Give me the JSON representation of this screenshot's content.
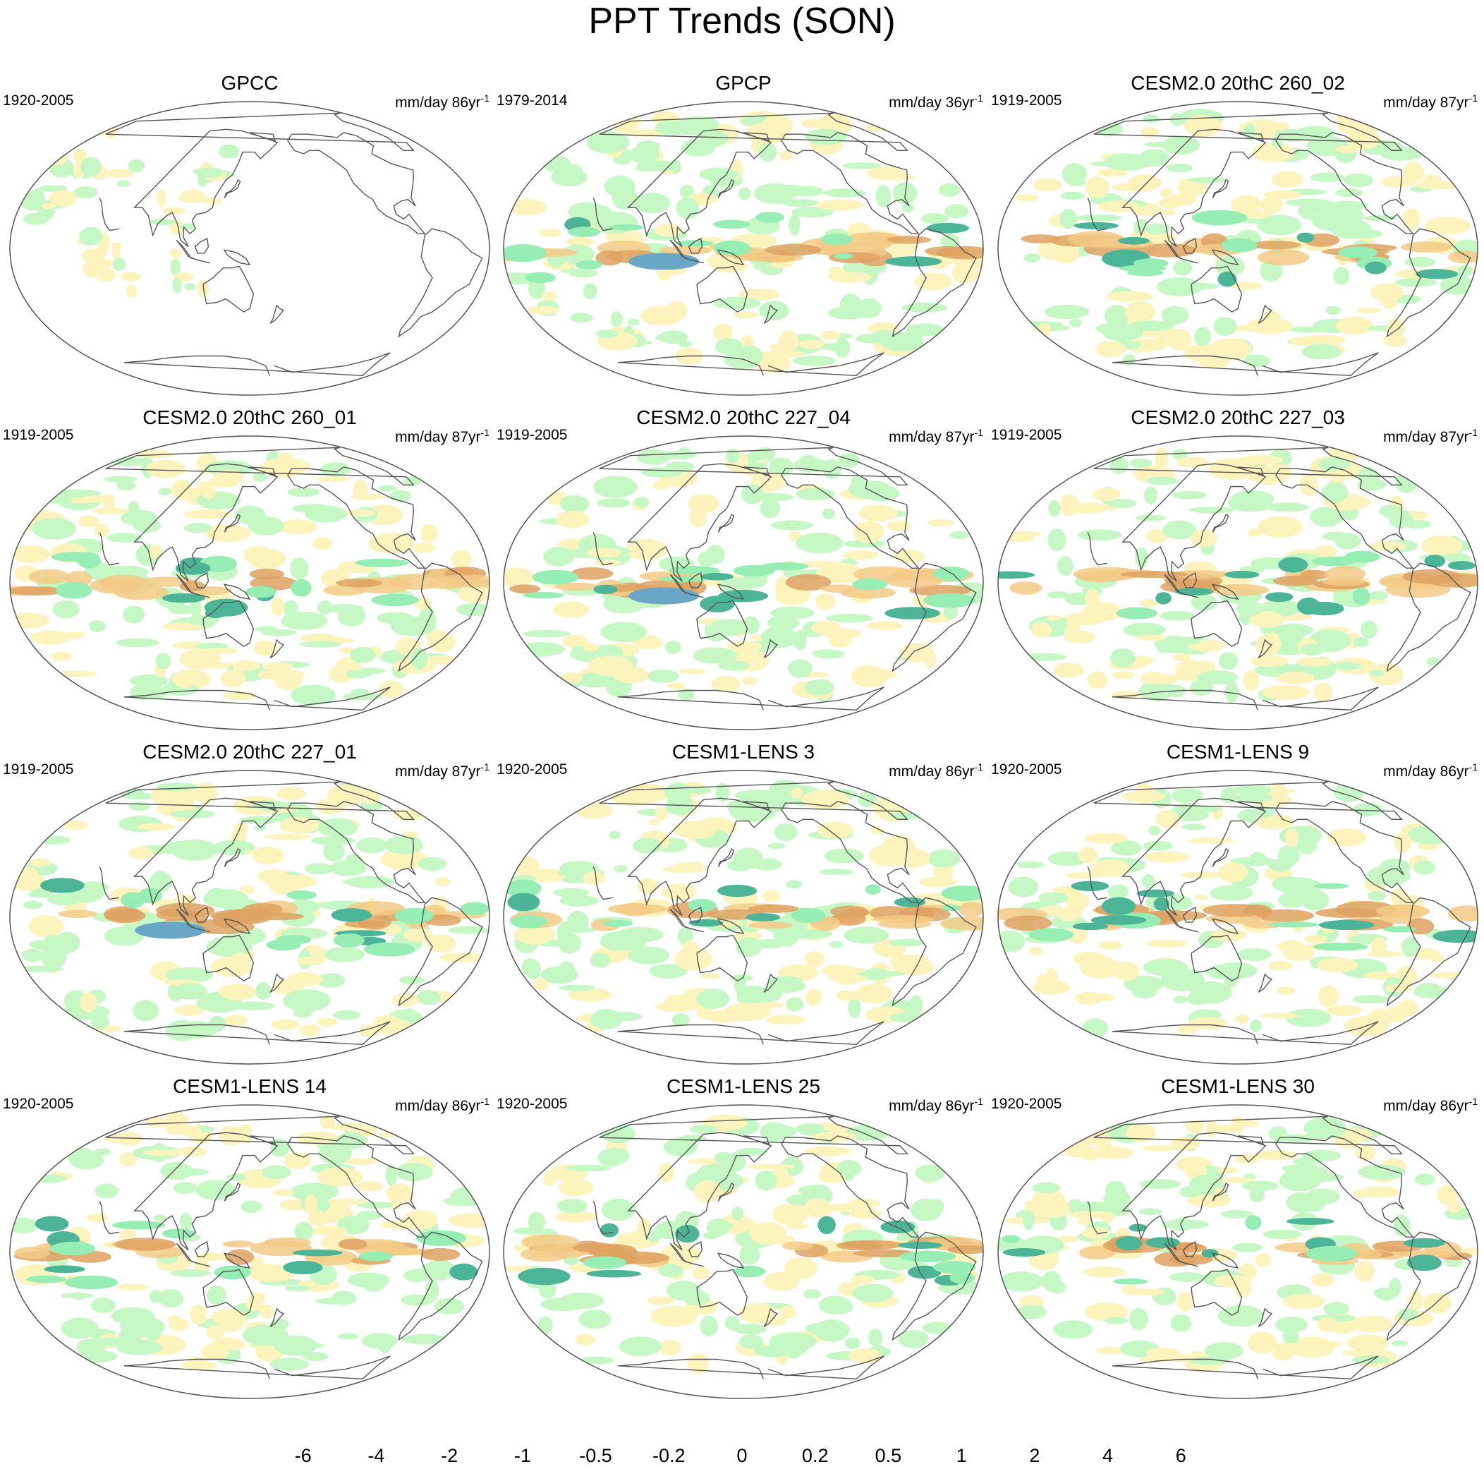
{
  "title": "PPT Trends (SON)",
  "panels": [
    {
      "title": "GPCC",
      "period": "1920-2005",
      "units": "mm/day 86yr",
      "sup": "-1"
    },
    {
      "title": "GPCP",
      "period": "1979-2014",
      "units": "mm/day 36yr",
      "sup": "-1"
    },
    {
      "title": "CESM2.0 20thC 260_02",
      "period": "1919-2005",
      "units": "mm/day 87yr",
      "sup": "-1"
    },
    {
      "title": "CESM2.0 20thC 260_01",
      "period": "1919-2005",
      "units": "mm/day 87yr",
      "sup": "-1"
    },
    {
      "title": "CESM2.0 20thC 227_04",
      "period": "1919-2005",
      "units": "mm/day 87yr",
      "sup": "-1"
    },
    {
      "title": "CESM2.0 20thC 227_03",
      "period": "1919-2005",
      "units": "mm/day 87yr",
      "sup": "-1"
    },
    {
      "title": "CESM2.0 20thC 227_01",
      "period": "1919-2005",
      "units": "mm/day 87yr",
      "sup": "-1"
    },
    {
      "title": "CESM1-LENS 3",
      "period": "1920-2005",
      "units": "mm/day 86yr",
      "sup": "-1"
    },
    {
      "title": "CESM1-LENS 9",
      "period": "1920-2005",
      "units": "mm/day 86yr",
      "sup": "-1"
    },
    {
      "title": "CESM1-LENS 14",
      "period": "1920-2005",
      "units": "mm/day 86yr",
      "sup": "-1"
    },
    {
      "title": "CESM1-LENS 25",
      "period": "1920-2005",
      "units": "mm/day 86yr",
      "sup": "-1"
    },
    {
      "title": "CESM1-LENS 30",
      "period": "1920-2005",
      "units": "mm/day 86yr",
      "sup": "-1"
    }
  ],
  "colorbar": {
    "colors": [
      "#b5692b",
      "#cd853f",
      "#dea261",
      "#f3ca86",
      "#f7deA0",
      "#fdf3bd",
      "#ffffff",
      "#ffffff",
      "#c6f8c6",
      "#96eeb4",
      "#4db597",
      "#6aa6c6",
      "#1a6aac",
      "#003658"
    ],
    "labels": [
      "-6",
      "-4",
      "-2",
      "-1",
      "-0.5",
      "-0.2",
      "0",
      "0.2",
      "0.5",
      "1",
      "2",
      "4",
      "6"
    ]
  },
  "colors": {
    "coast": "#555555",
    "outline": "#555555",
    "dry_strong": "#dea261",
    "dry": "#f3ca86",
    "dry_light": "#fdf3bd",
    "wet_light": "#c6f8c6",
    "wet": "#96eeb4",
    "wet_strong": "#4db597",
    "wet_max": "#6aa6c6"
  }
}
